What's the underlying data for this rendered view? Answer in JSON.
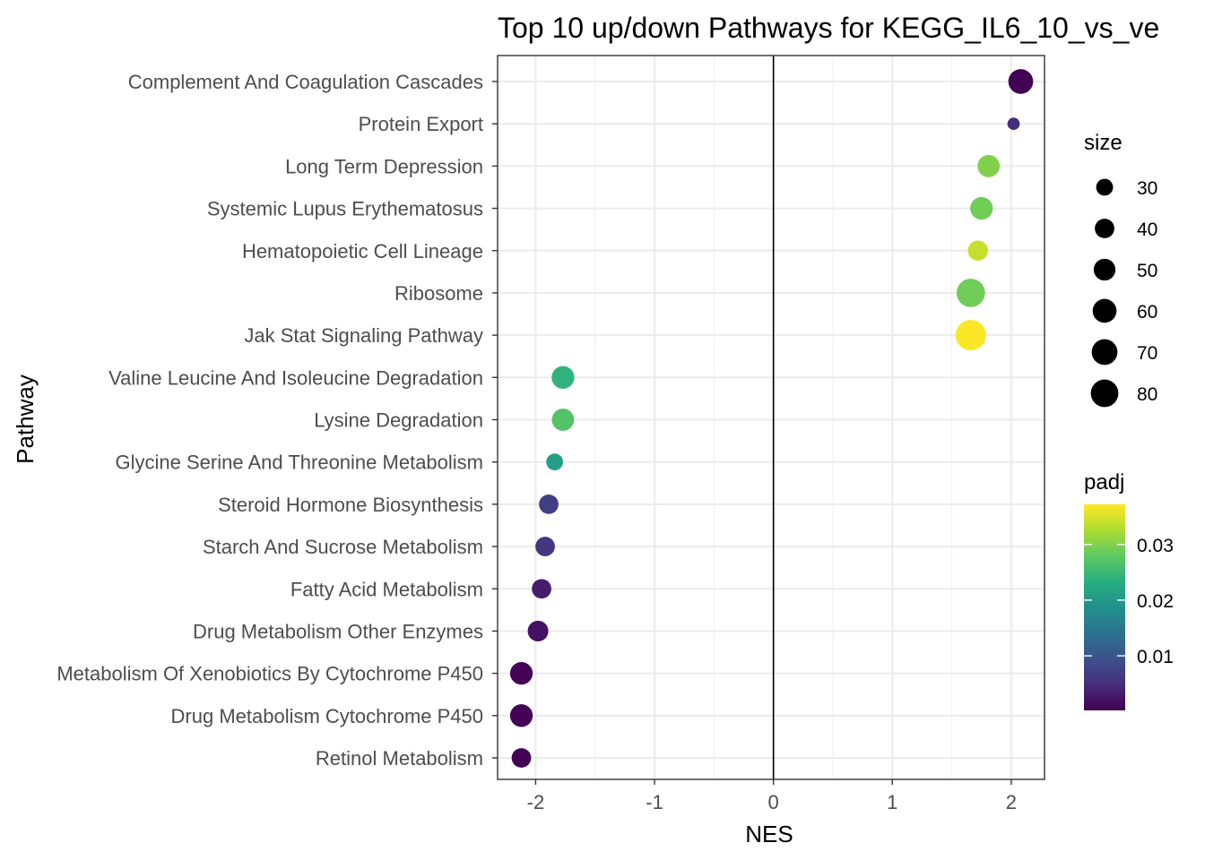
{
  "chart_data": {
    "type": "scatter",
    "title": "Top 10 up/down Pathways for  KEGG_IL6_10_vs_ve",
    "xlabel": "NES",
    "ylabel": "Pathway",
    "xlim": [
      -2.32,
      2.28
    ],
    "xticks": [
      -2,
      -1,
      0,
      1,
      2
    ],
    "vline": 0,
    "grid": true,
    "legend_position": "right",
    "categories": [
      "Complement And Coagulation Cascades",
      "Protein Export",
      "Long Term Depression",
      "Systemic Lupus Erythematosus",
      "Hematopoietic Cell Lineage",
      "Ribosome",
      "Jak Stat Signaling Pathway",
      "Valine Leucine And Isoleucine Degradation",
      "Lysine Degradation",
      "Glycine Serine And Threonine Metabolism",
      "Steroid Hormone Biosynthesis",
      "Starch And Sucrose Metabolism",
      "Fatty Acid Metabolism",
      "Drug Metabolism Other Enzymes",
      "Metabolism Of Xenobiotics By Cytochrome P450",
      "Drug Metabolism Cytochrome P450",
      "Retinol Metabolism"
    ],
    "points": [
      {
        "pathway": "Complement And Coagulation Cascades",
        "nes": 2.08,
        "size": 65,
        "padj": 0.0003
      },
      {
        "pathway": "Protein Export",
        "nes": 2.02,
        "size": 16,
        "padj": 0.005
      },
      {
        "pathway": "Long Term Depression",
        "nes": 1.81,
        "size": 52,
        "padj": 0.03
      },
      {
        "pathway": "Systemic Lupus Erythematosus",
        "nes": 1.75,
        "size": 54,
        "padj": 0.029
      },
      {
        "pathway": "Hematopoietic Cell Lineage",
        "nes": 1.72,
        "size": 43,
        "padj": 0.034
      },
      {
        "pathway": "Ribosome",
        "nes": 1.66,
        "size": 85,
        "padj": 0.029
      },
      {
        "pathway": "Jak Stat Signaling Pathway",
        "nes": 1.66,
        "size": 98,
        "padj": 0.037
      },
      {
        "pathway": "Valine Leucine And Isoleucine Degradation",
        "nes": -1.77,
        "size": 54,
        "padj": 0.024
      },
      {
        "pathway": "Lysine Degradation",
        "nes": -1.77,
        "size": 52,
        "padj": 0.027
      },
      {
        "pathway": "Glycine Serine And Threonine Metabolism",
        "nes": -1.84,
        "size": 30,
        "padj": 0.021
      },
      {
        "pathway": "Steroid Hormone Biosynthesis",
        "nes": -1.89,
        "size": 40,
        "padj": 0.007
      },
      {
        "pathway": "Starch And Sucrose Metabolism",
        "nes": -1.92,
        "size": 40,
        "padj": 0.006
      },
      {
        "pathway": "Fatty Acid Metabolism",
        "nes": -1.95,
        "size": 40,
        "padj": 0.003
      },
      {
        "pathway": "Drug Metabolism Other Enzymes",
        "nes": -1.98,
        "size": 45,
        "padj": 0.002
      },
      {
        "pathway": "Metabolism Of Xenobiotics By Cytochrome P450",
        "nes": -2.12,
        "size": 54,
        "padj": 0.0004
      },
      {
        "pathway": "Drug Metabolism Cytochrome P450",
        "nes": -2.12,
        "size": 54,
        "padj": 0.0003
      },
      {
        "pathway": "Retinol Metabolism",
        "nes": -2.12,
        "size": 40,
        "padj": 0.0003
      }
    ],
    "size_legend": {
      "title": "size",
      "values": [
        30,
        40,
        50,
        60,
        70,
        80
      ]
    },
    "color_legend": {
      "title": "padj",
      "min": 0.0002,
      "max": 0.0372,
      "ticks": [
        {
          "value": 0.01,
          "label": "0.01"
        },
        {
          "value": 0.02,
          "label": "0.02"
        },
        {
          "value": 0.03,
          "label": "0.03"
        }
      ],
      "colormap": "viridis"
    }
  }
}
